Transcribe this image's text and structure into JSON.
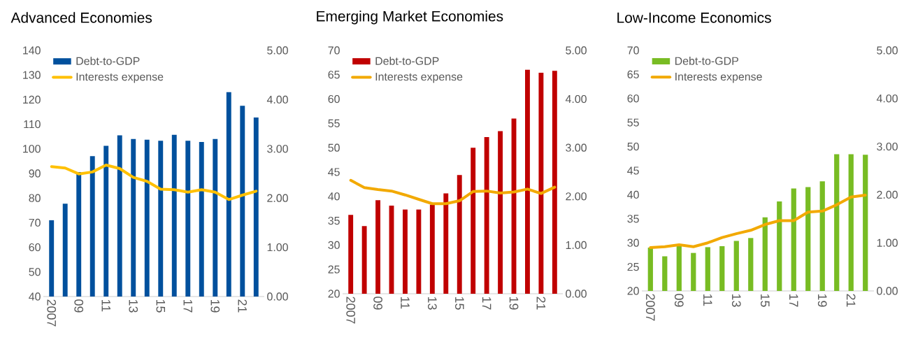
{
  "chart_data": [
    {
      "type": "bar",
      "title": "Advanced Economies",
      "categories": [
        "2007",
        null,
        "09",
        null,
        "11",
        null,
        "13",
        null,
        "15",
        null,
        "17",
        null,
        "19",
        null,
        "21",
        null
      ],
      "series": [
        {
          "name": "Debt-to-GDP",
          "color": "#00509d",
          "values": [
            71,
            77.7,
            90.6,
            97,
            101.2,
            105.5,
            104,
            103.7,
            103.3,
            105.7,
            103.3,
            102.8,
            104,
            123,
            117.5,
            112.7
          ]
        },
        {
          "name": "Interests expense",
          "type": "line",
          "axis": "y2",
          "color": "#ffc000",
          "values": [
            2.64,
            2.61,
            2.49,
            2.53,
            2.67,
            2.6,
            2.42,
            2.34,
            2.18,
            2.17,
            2.12,
            2.17,
            2.12,
            1.97,
            2.06,
            2.14
          ]
        }
      ],
      "ylim": [
        40,
        140
      ],
      "yticks": [
        40,
        50,
        60,
        70,
        80,
        90,
        100,
        110,
        120,
        130,
        140
      ],
      "y2lim": [
        0,
        5
      ],
      "y2ticks": [
        {
          "value": 0,
          "label": "0.00"
        },
        {
          "value": 1,
          "label": "1.00"
        },
        {
          "value": 2,
          "label": "2.00"
        },
        {
          "value": 3,
          "label": "3.00"
        },
        {
          "value": 4,
          "label": "4.00"
        },
        {
          "value": 5,
          "label": "5.00"
        }
      ],
      "legend": "top left",
      "grid": false
    },
    {
      "type": "bar",
      "title": "Emerging Market Economies",
      "categories": [
        "2007",
        null,
        "09",
        null,
        "11",
        null,
        "13",
        null,
        "15",
        null,
        "17",
        null,
        "19",
        null,
        "21",
        null
      ],
      "series": [
        {
          "name": "Debt-to-GDP",
          "color": "#c00000",
          "values": [
            36.2,
            33.9,
            39.2,
            38.1,
            37.3,
            37.3,
            38.3,
            40.6,
            44.4,
            50,
            52.2,
            53.4,
            56,
            66,
            65.4,
            65.8
          ]
        },
        {
          "name": "Interests expense",
          "type": "line",
          "axis": "y2",
          "color": "#f2a900",
          "values": [
            2.33,
            2.18,
            2.14,
            2.11,
            2.03,
            1.94,
            1.85,
            1.85,
            1.91,
            2.1,
            2.11,
            2.07,
            2.09,
            2.15,
            2.06,
            2.19
          ]
        }
      ],
      "ylim": [
        20,
        70
      ],
      "yticks": [
        20,
        25,
        30,
        35,
        40,
        45,
        50,
        55,
        60,
        65,
        70
      ],
      "y2lim": [
        0,
        5
      ],
      "y2ticks": [
        {
          "value": 0,
          "label": "0.00"
        },
        {
          "value": 1,
          "label": "1.00"
        },
        {
          "value": 2,
          "label": "2.00"
        },
        {
          "value": 3,
          "label": "3.00"
        },
        {
          "value": 4,
          "label": "4.00"
        },
        {
          "value": 5,
          "label": "5.00"
        }
      ],
      "legend": "top left",
      "grid": false
    },
    {
      "type": "bar",
      "title": "Low-Income Economics",
      "categories": [
        "2007",
        null,
        "09",
        null,
        "11",
        null,
        "13",
        null,
        "15",
        null,
        "17",
        null,
        "19",
        null,
        "21",
        null
      ],
      "series": [
        {
          "name": "Debt-to-GDP",
          "color": "#78bc23",
          "values": [
            29,
            27.2,
            29.4,
            27.9,
            29.1,
            29.3,
            30.4,
            31,
            35.3,
            38.6,
            41.3,
            41.6,
            42.8,
            48.4,
            48.4,
            48.3
          ]
        },
        {
          "name": "Interests expense",
          "type": "line",
          "axis": "y2",
          "color": "#f2a900",
          "values": [
            0.9,
            0.92,
            0.96,
            0.92,
            1.0,
            1.11,
            1.19,
            1.26,
            1.38,
            1.46,
            1.46,
            1.64,
            1.66,
            1.79,
            1.95,
            1.99
          ]
        }
      ],
      "ylim": [
        20,
        70
      ],
      "yticks": [
        20,
        25,
        30,
        35,
        40,
        45,
        50,
        55,
        60,
        65,
        70
      ],
      "y2lim": [
        0,
        5
      ],
      "y2ticks": [
        {
          "value": 0,
          "label": "0.00"
        },
        {
          "value": 1,
          "label": "1.00"
        },
        {
          "value": 2,
          "label": "2.00"
        },
        {
          "value": 3,
          "label": "3.00"
        },
        {
          "value": 4,
          "label": "4.00"
        },
        {
          "value": 5,
          "label": "5.00"
        }
      ],
      "legend": "top left",
      "grid": false
    }
  ]
}
